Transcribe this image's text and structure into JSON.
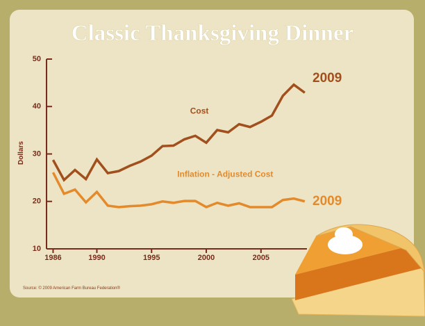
{
  "chart_data": {
    "type": "line",
    "title": "Classic Thanksgiving Dinner",
    "y_label": "Dollars",
    "source": "Source:  © 2009 American Farm Bureau Federation®",
    "x": [
      1986,
      1987,
      1988,
      1989,
      1990,
      1991,
      1992,
      1993,
      1994,
      1995,
      1996,
      1997,
      1998,
      1999,
      2000,
      2001,
      2002,
      2003,
      2004,
      2005,
      2006,
      2007,
      2008,
      2009
    ],
    "series": [
      {
        "name": "Cost",
        "color": "#a14f1c",
        "end_label": "2009",
        "values": [
          28.74,
          24.51,
          26.62,
          24.7,
          28.85,
          25.95,
          26.39,
          27.49,
          28.4,
          29.64,
          31.66,
          31.75,
          33.09,
          33.83,
          32.37,
          35.04,
          34.56,
          36.28,
          35.68,
          36.78,
          38.1,
          42.26,
          44.61,
          42.91
        ]
      },
      {
        "name": "Inflation - Adjusted Cost",
        "color": "#e38b2c",
        "end_label": "2009",
        "values": [
          26.1,
          21.6,
          22.5,
          19.8,
          22.0,
          19.1,
          18.8,
          19.0,
          19.1,
          19.4,
          20.0,
          19.7,
          20.1,
          20.1,
          18.8,
          19.7,
          19.1,
          19.6,
          18.8,
          18.8,
          18.8,
          20.3,
          20.6,
          20.0
        ]
      }
    ],
    "xlim": [
      1985.4,
      2009.2
    ],
    "xticks": [
      1986,
      1990,
      1995,
      2000,
      2005
    ],
    "ylim": [
      10,
      50
    ],
    "yticks": [
      10,
      20,
      30,
      40,
      50
    ],
    "grid": false
  }
}
